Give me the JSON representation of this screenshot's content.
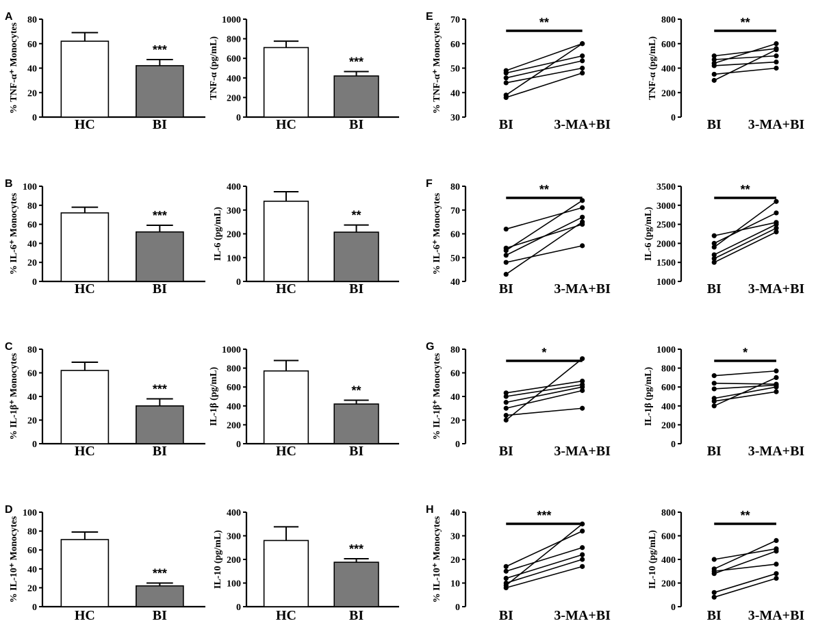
{
  "chart_data": [
    {
      "id": "A-left",
      "panel_label": "A",
      "type": "bar",
      "ylabel": "% TNF-α⁺ Monocytes",
      "ylim": [
        0,
        80
      ],
      "yticks": [
        "0",
        "20",
        "40",
        "60",
        "80"
      ],
      "categories": [
        "HC",
        "BI"
      ],
      "values": [
        62,
        42
      ],
      "errors": [
        7,
        5
      ],
      "sig": "***"
    },
    {
      "id": "A-right",
      "panel_label": "",
      "type": "bar",
      "ylabel": "TNF-α (pg/mL)",
      "ylim": [
        0,
        1000
      ],
      "yticks": [
        "0",
        "200",
        "400",
        "600",
        "800",
        "1000"
      ],
      "categories": [
        "HC",
        "BI"
      ],
      "values": [
        710,
        420
      ],
      "errors": [
        65,
        45
      ],
      "sig": "***"
    },
    {
      "id": "B-left",
      "panel_label": "B",
      "type": "bar",
      "ylabel": "% IL-6⁺ Monocytes",
      "ylim": [
        0,
        100
      ],
      "yticks": [
        "0",
        "20",
        "40",
        "60",
        "80",
        "100"
      ],
      "categories": [
        "HC",
        "BI"
      ],
      "values": [
        72,
        52
      ],
      "errors": [
        6,
        7
      ],
      "sig": "***"
    },
    {
      "id": "B-right",
      "panel_label": "",
      "type": "bar",
      "ylabel": "IL-6 (pg/mL)",
      "ylim": [
        0,
        400
      ],
      "yticks": [
        "0",
        "100",
        "200",
        "300",
        "400"
      ],
      "categories": [
        "HC",
        "BI"
      ],
      "values": [
        337,
        207
      ],
      "errors": [
        40,
        30
      ],
      "sig": "**"
    },
    {
      "id": "C-left",
      "panel_label": "C",
      "type": "bar",
      "ylabel": "% IL-1β⁺ Monocytes",
      "ylim": [
        0,
        80
      ],
      "yticks": [
        "0",
        "20",
        "40",
        "60",
        "80"
      ],
      "categories": [
        "HC",
        "BI"
      ],
      "values": [
        62,
        32
      ],
      "errors": [
        7,
        6
      ],
      "sig": "***"
    },
    {
      "id": "C-right",
      "panel_label": "",
      "type": "bar",
      "ylabel": "IL-1β (pg/mL)",
      "ylim": [
        0,
        1000
      ],
      "yticks": [
        "0",
        "200",
        "400",
        "600",
        "800",
        "1000"
      ],
      "categories": [
        "HC",
        "BI"
      ],
      "values": [
        770,
        420
      ],
      "errors": [
        110,
        40
      ],
      "sig": "**"
    },
    {
      "id": "D-left",
      "panel_label": "D",
      "type": "bar",
      "ylabel": "% IL-10⁺ Monocytes",
      "ylim": [
        0,
        100
      ],
      "yticks": [
        "0",
        "20",
        "40",
        "60",
        "80",
        "100"
      ],
      "categories": [
        "HC",
        "BI"
      ],
      "values": [
        71,
        22
      ],
      "errors": [
        8,
        3
      ],
      "sig": "***"
    },
    {
      "id": "D-right",
      "panel_label": "",
      "type": "bar",
      "ylabel": "IL-10 (pg/mL)",
      "ylim": [
        0,
        400
      ],
      "yticks": [
        "0",
        "100",
        "200",
        "300",
        "400"
      ],
      "categories": [
        "HC",
        "BI"
      ],
      "values": [
        280,
        188
      ],
      "errors": [
        58,
        15
      ],
      "sig": "***"
    },
    {
      "id": "E-left",
      "panel_label": "E",
      "type": "line",
      "ylabel": "% TNF-α⁺ Monocytes",
      "ylim": [
        30,
        70
      ],
      "yticks": [
        "30",
        "40",
        "50",
        "60",
        "70"
      ],
      "categories": [
        "BI",
        "3-MA+BI"
      ],
      "series": [
        [
          38,
          48
        ],
        [
          39,
          60
        ],
        [
          44,
          50
        ],
        [
          46,
          53
        ],
        [
          48,
          55
        ],
        [
          49,
          60
        ]
      ],
      "sig": "**"
    },
    {
      "id": "E-right",
      "panel_label": "",
      "type": "line",
      "ylabel": "TNF-α (pg/mL)",
      "ylim": [
        0,
        800
      ],
      "yticks": [
        "0",
        "200",
        "400",
        "600",
        "800"
      ],
      "categories": [
        "BI",
        "3-MA+BI"
      ],
      "series": [
        [
          300,
          550
        ],
        [
          350,
          400
        ],
        [
          420,
          450
        ],
        [
          440,
          600
        ],
        [
          470,
          500
        ],
        [
          500,
          560
        ]
      ],
      "sig": "**"
    },
    {
      "id": "F-left",
      "panel_label": "F",
      "type": "line",
      "ylabel": "% IL-6⁺ Monocytes",
      "ylim": [
        40,
        80
      ],
      "yticks": [
        "40",
        "50",
        "60",
        "70",
        "80"
      ],
      "categories": [
        "BI",
        "3-MA+BI"
      ],
      "series": [
        [
          43,
          65
        ],
        [
          48,
          55
        ],
        [
          51,
          67
        ],
        [
          53,
          74
        ],
        [
          54,
          64
        ],
        [
          62,
          71
        ]
      ],
      "sig": "**"
    },
    {
      "id": "F-right",
      "panel_label": "",
      "type": "line",
      "ylabel": "IL-6 (pg/mL)",
      "ylim": [
        1000,
        3500
      ],
      "yticks": [
        "1000",
        "1500",
        "2000",
        "2500",
        "3000",
        "3500"
      ],
      "categories": [
        "BI",
        "3-MA+BI"
      ],
      "series": [
        [
          1500,
          2300
        ],
        [
          1600,
          2400
        ],
        [
          1700,
          2500
        ],
        [
          1900,
          3100
        ],
        [
          2000,
          2800
        ],
        [
          2200,
          2550
        ]
      ],
      "sig": "**"
    },
    {
      "id": "G-left",
      "panel_label": "G",
      "type": "line",
      "ylabel": "% IL-1β⁺ Monocytes",
      "ylim": [
        0,
        80
      ],
      "yticks": [
        "0",
        "20",
        "40",
        "60",
        "80"
      ],
      "categories": [
        "BI",
        "3-MA+BI"
      ],
      "series": [
        [
          20,
          72
        ],
        [
          24,
          30
        ],
        [
          30,
          45
        ],
        [
          35,
          48
        ],
        [
          40,
          50
        ],
        [
          43,
          53
        ]
      ],
      "sig": "*"
    },
    {
      "id": "G-right",
      "panel_label": "",
      "type": "line",
      "ylabel": "IL-1β (pg/mL)",
      "ylim": [
        0,
        1000
      ],
      "yticks": [
        "0",
        "200",
        "400",
        "600",
        "800",
        "1000"
      ],
      "categories": [
        "BI",
        "3-MA+BI"
      ],
      "series": [
        [
          400,
          700
        ],
        [
          450,
          550
        ],
        [
          480,
          600
        ],
        [
          580,
          620
        ],
        [
          640,
          630
        ],
        [
          720,
          770
        ]
      ],
      "sig": "*"
    },
    {
      "id": "H-left",
      "panel_label": "H",
      "type": "line",
      "ylabel": "% IL-10⁺ Monocytes",
      "ylim": [
        0,
        40
      ],
      "yticks": [
        "0",
        "10",
        "20",
        "30",
        "40"
      ],
      "categories": [
        "BI",
        "3-MA+BI"
      ],
      "series": [
        [
          8,
          17
        ],
        [
          9,
          35
        ],
        [
          10,
          20
        ],
        [
          12,
          22
        ],
        [
          15,
          25
        ],
        [
          17,
          32
        ]
      ],
      "sig": "***"
    },
    {
      "id": "H-right",
      "panel_label": "",
      "type": "line",
      "ylabel": "IL-10 (pg/mL)",
      "ylim": [
        0,
        800
      ],
      "yticks": [
        "0",
        "200",
        "400",
        "600",
        "800"
      ],
      "categories": [
        "BI",
        "3-MA+BI"
      ],
      "series": [
        [
          80,
          240
        ],
        [
          120,
          280
        ],
        [
          280,
          470
        ],
        [
          300,
          360
        ],
        [
          320,
          560
        ],
        [
          400,
          490
        ]
      ],
      "sig": "**"
    }
  ]
}
